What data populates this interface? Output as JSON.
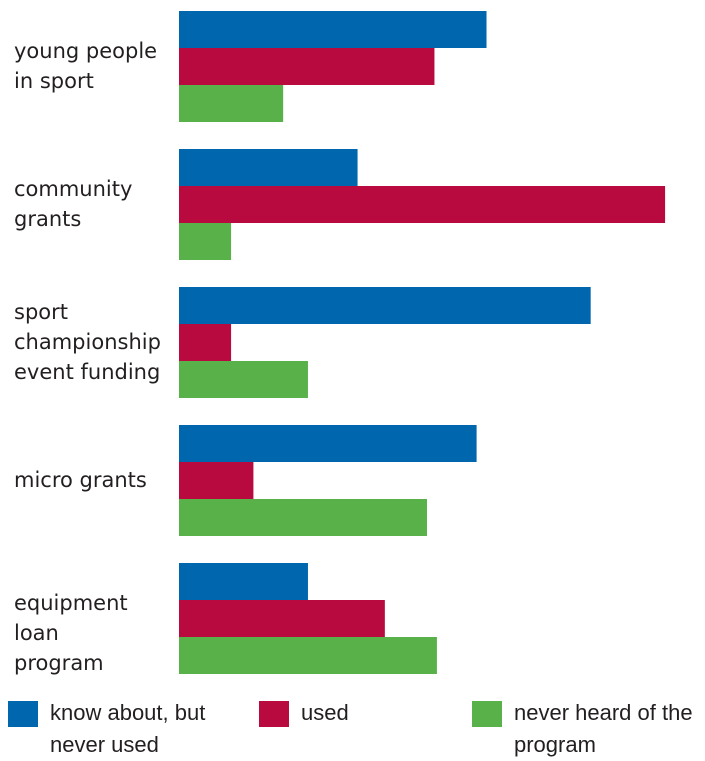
{
  "chart_data": {
    "type": "bar",
    "orientation": "horizontal",
    "categories": [
      [
        "young people",
        "in sport"
      ],
      [
        "community",
        "grants"
      ],
      [
        "sport",
        "championship",
        "event funding"
      ],
      [
        "micro grants"
      ],
      [
        "equipment loan",
        "program"
      ]
    ],
    "series": [
      {
        "name": [
          "know about, but",
          "never used"
        ],
        "color": "#0066ad",
        "values": [
          62,
          36,
          83,
          60,
          26
        ]
      },
      {
        "name": [
          "used"
        ],
        "color": "#b80a3e",
        "values": [
          51.5,
          98,
          10.5,
          15,
          41.5
        ]
      },
      {
        "name": [
          "never heard of the",
          "program"
        ],
        "color": "#59b14a",
        "values": [
          21,
          10.5,
          26,
          50,
          52
        ]
      }
    ],
    "xlim": [
      0,
      100
    ],
    "grid": false,
    "legend_position": "bottom"
  }
}
